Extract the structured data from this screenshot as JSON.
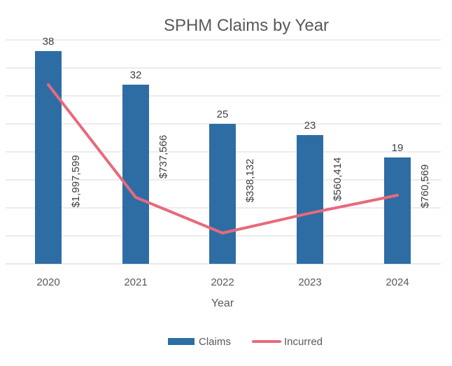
{
  "chart_data": {
    "type": "bar",
    "title": "SPHM Claims by Year",
    "xlabel": "Year",
    "ylabel": "",
    "categories": [
      "2020",
      "2021",
      "2022",
      "2023",
      "2024"
    ],
    "series": [
      {
        "name": "Claims",
        "type": "bar",
        "values": [
          38,
          32,
          25,
          23,
          19
        ],
        "labels": [
          "38",
          "32",
          "25",
          "23",
          "19"
        ],
        "color": "#2E6DA4"
      },
      {
        "name": "Incurred",
        "type": "line",
        "values": [
          1997599,
          737566,
          338132,
          560414,
          760569
        ],
        "labels": [
          "$1,997,599",
          "$737,566",
          "$338,132",
          "$560,414",
          "$760,569"
        ],
        "color": "#E8697D"
      }
    ],
    "ylim": [
      0,
      40
    ],
    "grid": true,
    "legend_position": "bottom"
  }
}
